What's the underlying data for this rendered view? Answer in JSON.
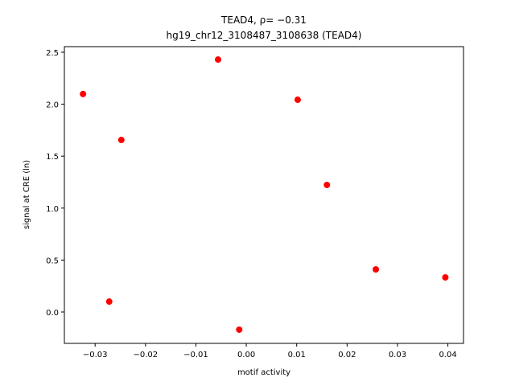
{
  "chart_data": {
    "type": "scatter",
    "title": "TEAD4, ρ= −0.31",
    "subtitle": "hg19_chr12_3108487_3108638 (TEAD4)",
    "x_label": "motif activity",
    "y_label": "signal at CRE (ln)",
    "x": [
      -0.0324,
      -0.0272,
      -0.0248,
      -0.0056,
      -0.0014,
      0.0102,
      0.016,
      0.0257,
      0.0395
    ],
    "series": [
      {
        "color": "#ff0000",
        "values": [
          2.098,
          0.1,
          1.656,
          2.43,
          -0.17,
          2.043,
          1.223,
          0.41,
          0.333
        ]
      }
    ],
    "xlim": [
      -0.0361,
      0.0431
    ],
    "ylim": [
      -0.302,
      2.554
    ],
    "xticks": [
      {
        "value": -0.03,
        "label": "−0.03"
      },
      {
        "value": -0.02,
        "label": "−0.02"
      },
      {
        "value": -0.01,
        "label": "−0.01"
      },
      {
        "value": 0,
        "label": "0.00"
      },
      0.01,
      0.02,
      0.03,
      0.04
    ],
    "yticks": [
      {
        "value": 0,
        "label": "0.0"
      },
      0.5,
      {
        "value": 1,
        "label": "1.0"
      },
      1.5,
      {
        "value": 2,
        "label": "2.0"
      },
      2.5
    ],
    "grid": false
  }
}
